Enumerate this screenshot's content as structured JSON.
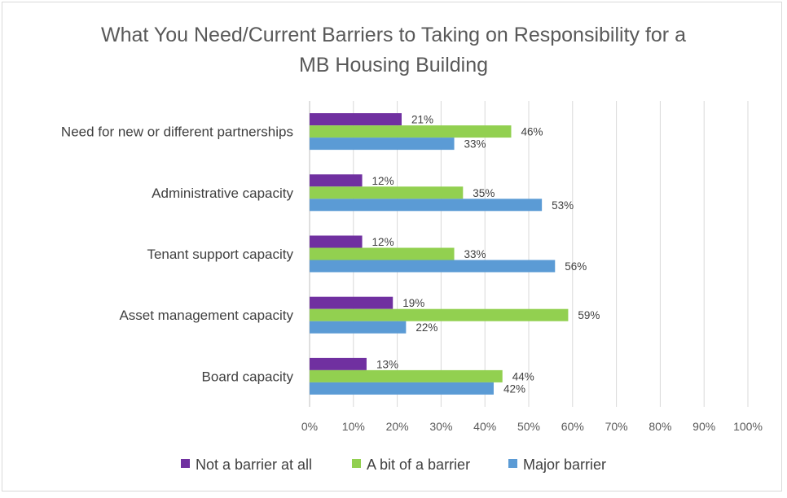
{
  "chart_data": {
    "type": "bar",
    "orientation": "horizontal",
    "title": [
      "What You Need/Current Barriers to Taking on Responsibility for a",
      "MB Housing Building"
    ],
    "categories": [
      "Need for new or different partnerships",
      "Administrative capacity",
      "Tenant support capacity",
      "Asset management capacity",
      "Board capacity"
    ],
    "series": [
      {
        "name": "Not a barrier at all",
        "color": "#7030a0",
        "values": [
          21,
          12,
          12,
          19,
          13
        ],
        "labels": [
          "21%",
          "12%",
          "12%",
          "19%",
          "13%"
        ]
      },
      {
        "name": "A bit of a barrier",
        "color": "#92d050",
        "values": [
          46,
          35,
          33,
          59,
          44
        ],
        "labels": [
          "46%",
          "35%",
          "33%",
          "59%",
          "44%"
        ]
      },
      {
        "name": "Major barrier",
        "color": "#5b9bd5",
        "values": [
          33,
          53,
          56,
          22,
          42
        ],
        "labels": [
          "33%",
          "53%",
          "56%",
          "22%",
          "42%"
        ]
      }
    ],
    "xlim": [
      0,
      100
    ],
    "xticks": [
      "0%",
      "10%",
      "20%",
      "30%",
      "40%",
      "50%",
      "60%",
      "70%",
      "80%",
      "90%",
      "100%"
    ],
    "grid": true,
    "legend_position": "bottom"
  }
}
